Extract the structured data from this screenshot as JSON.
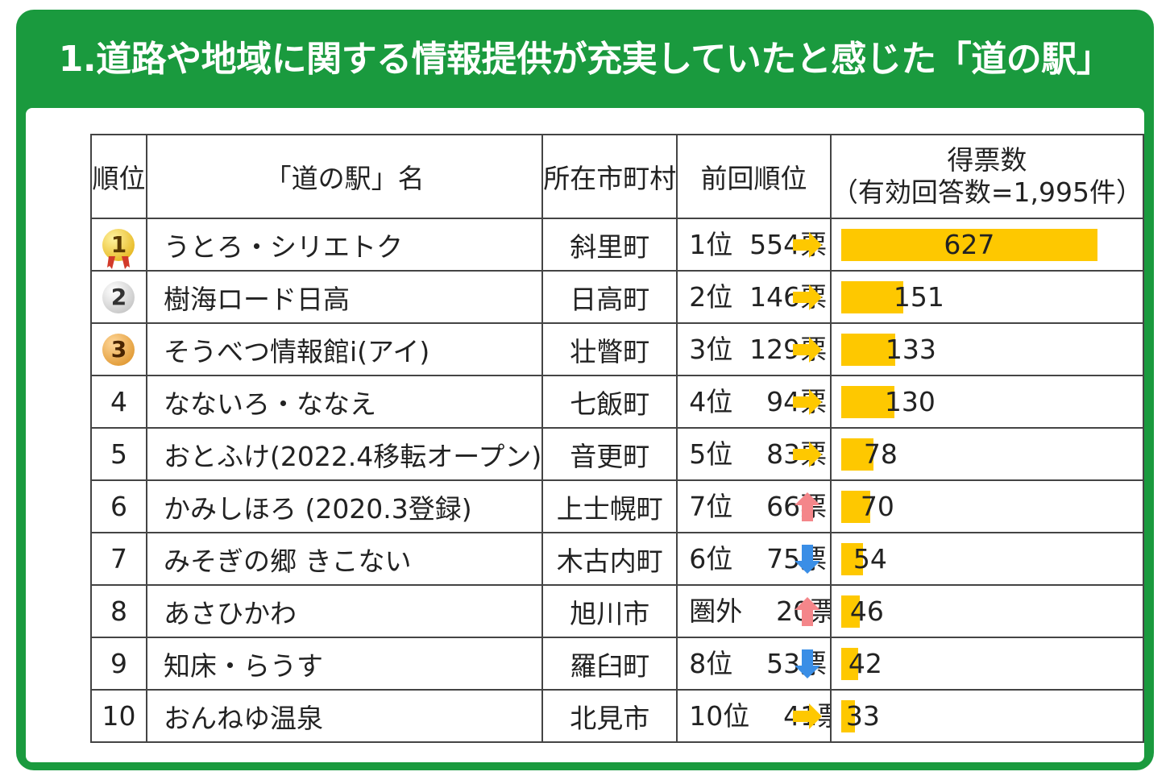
{
  "title": "1.道路や地域に関する情報提供が充実していたと感じた「道の駅」",
  "colors": {
    "frame": "#1a9a3e",
    "bar": "#fec800",
    "arrow_same": "#fec800",
    "arrow_up": "#f4868a",
    "arrow_down": "#3a8ee6"
  },
  "headers": {
    "rank": "順位",
    "name": "「道の駅」名",
    "town": "所在市町村",
    "previous": "前回順位",
    "votes_line1": "得票数",
    "votes_line2": "（有効回答数=1,995件）"
  },
  "rows": [
    {
      "rank": "1",
      "medal": "gold",
      "name": "うとろ・シリエトク",
      "town": "斜里町",
      "previous": "1位  554票",
      "trend": "same",
      "votes": 627
    },
    {
      "rank": "2",
      "medal": "silver",
      "name": "樹海ロード日高",
      "town": "日高町",
      "previous": "2位  146票",
      "trend": "same",
      "votes": 151
    },
    {
      "rank": "3",
      "medal": "bronze",
      "name": "そうべつ情報館i(アイ)",
      "town": "壮瞥町",
      "previous": "3位  129票",
      "trend": "same",
      "votes": 133
    },
    {
      "rank": "4",
      "medal": "",
      "name": "なないろ・ななえ",
      "town": "七飯町",
      "previous": "4位    94票",
      "trend": "same",
      "votes": 130
    },
    {
      "rank": "5",
      "medal": "",
      "name": "おとふけ(2022.4移転オープン)",
      "town": "音更町",
      "previous": "5位    83票",
      "trend": "same",
      "votes": 78
    },
    {
      "rank": "6",
      "medal": "",
      "name": "かみしほろ (2020.3登録)",
      "town": "上士幌町",
      "previous": "7位    66票",
      "trend": "up",
      "votes": 70
    },
    {
      "rank": "7",
      "medal": "",
      "name": "みそぎの郷 きこない",
      "town": "木古内町",
      "previous": "6位    75票",
      "trend": "down",
      "votes": 54
    },
    {
      "rank": "8",
      "medal": "",
      "name": "あさひかわ",
      "town": "旭川市",
      "previous": "圏外    20票",
      "trend": "up",
      "votes": 46
    },
    {
      "rank": "9",
      "medal": "",
      "name": "知床・らうす",
      "town": "羅臼町",
      "previous": "8位    53票",
      "trend": "down",
      "votes": 42
    },
    {
      "rank": "10",
      "medal": "",
      "name": "おんねゆ温泉",
      "town": "北見市",
      "previous": "10位    41票",
      "trend": "same",
      "votes": 33
    }
  ],
  "chart_data": {
    "type": "bar",
    "categories": [
      "うとろ・シリエトク",
      "樹海ロード日高",
      "そうべつ情報館i(アイ)",
      "なないろ・ななえ",
      "おとふけ(2022.4移転オープン)",
      "かみしほろ (2020.3登録)",
      "みそぎの郷 きこない",
      "あさひかわ",
      "知床・らうす",
      "おんねゆ温泉"
    ],
    "values": [
      627,
      151,
      133,
      130,
      78,
      70,
      54,
      46,
      42,
      33
    ],
    "title": "1.道路や地域に関する情報提供が充実していたと感じた「道の駅」",
    "xlabel": "",
    "ylabel": "得票数",
    "ylim": [
      0,
      627
    ]
  }
}
